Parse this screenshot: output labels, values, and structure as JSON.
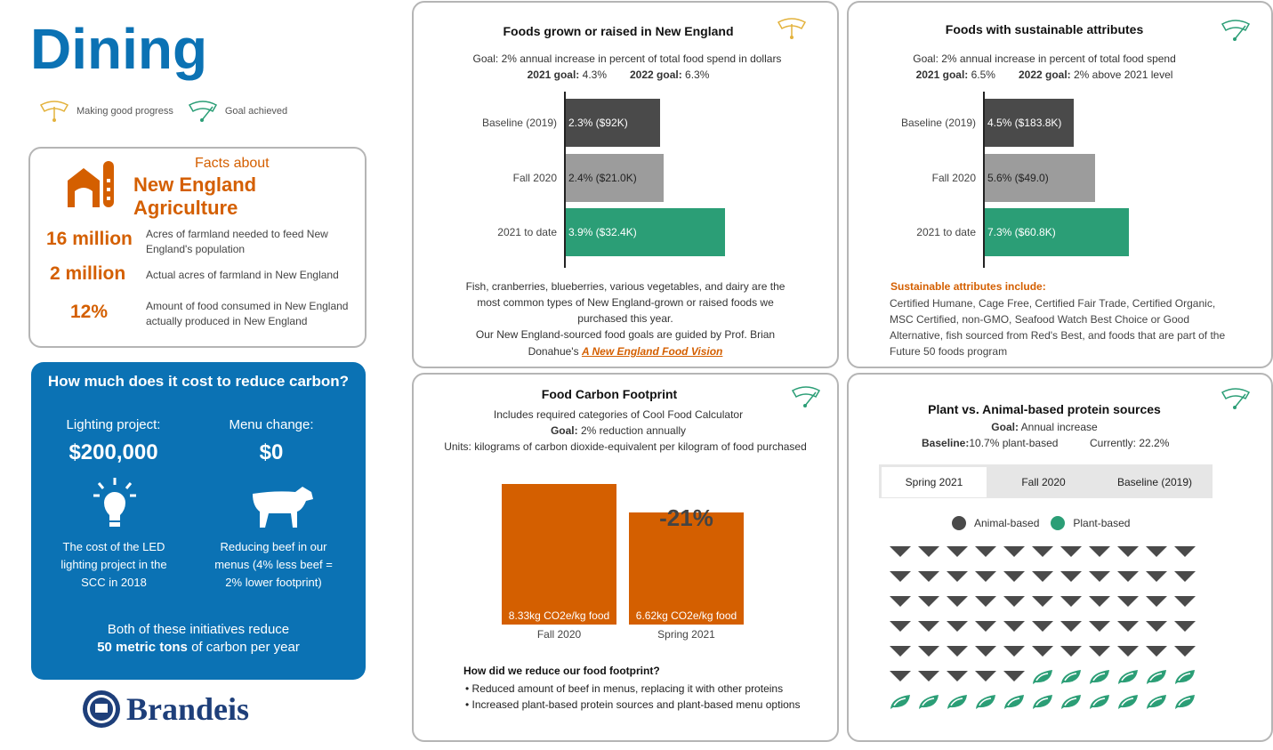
{
  "header": {
    "title": "Dining"
  },
  "legend": {
    "progress": "Making good progress",
    "achieved": "Goal achieved"
  },
  "colors": {
    "blue": "#0b72b4",
    "orange": "#d45f00",
    "green": "#2b9e76",
    "dark": "#4a4a4a",
    "gray": "#9c9c9c",
    "gold": "#e3b23c"
  },
  "facts": {
    "heading1": "Facts about",
    "heading2": "New England",
    "heading3": "Agriculture",
    "icon": "barn-silo-icon",
    "items": [
      {
        "value": "16 million",
        "text": "Acres of farmland needed to feed New England's population"
      },
      {
        "value": "2 million",
        "text": "Actual acres of farmland in New England"
      },
      {
        "value": "12%",
        "text": "Amount of food consumed in New England actually produced in New England"
      }
    ]
  },
  "carbon": {
    "title": "How much does it cost to reduce carbon?",
    "left": {
      "label": "Lighting project:",
      "value": "$200,000",
      "icon": "lightbulb-icon",
      "desc": "The cost of the LED lighting project in the  SCC  in 2018"
    },
    "right": {
      "label": "Menu change:",
      "value": "$0",
      "icon": "cow-icon",
      "desc": "Reducing beef in our menus (4% less beef = 2% lower footprint)"
    },
    "footer1": "Both of these initiatives reduce",
    "footer2_bold": "50 metric tons",
    "footer2_rest": " of carbon per year"
  },
  "logo": {
    "text": "Brandeis"
  },
  "ne_foods": {
    "title": "Foods grown or raised in New England",
    "status": "Making good progress",
    "goal": "Goal: 2% annual increase in percent of total food spend in dollars",
    "goal2021_label": "2021 goal:",
    "goal2021": " 4.3%",
    "goal2022_label": "2022 goal:",
    "goal2022": " 6.3%",
    "chart_data": {
      "type": "bar",
      "orientation": "horizontal",
      "categories": [
        "Baseline (2019)",
        "Fall 2020",
        "2021 to date"
      ],
      "values": [
        2.3,
        2.4,
        3.9
      ],
      "labels": [
        "2.3%  ($92K)",
        "2.4%  ($21.0K)",
        "3.9%  ($32.4K)"
      ],
      "colors": [
        "#4a4a4a",
        "#9c9c9c",
        "#2b9e76"
      ],
      "xlim": [
        0,
        5
      ]
    },
    "note": "Fish, cranberries, blueberries, various vegetables, and dairy are the most common types of New England-grown or raised foods we purchased this year.",
    "note2": "Our New England-sourced food goals are guided by Prof. Brian Donahue's ",
    "link": "A New England Food Vision"
  },
  "sustain": {
    "title": "Foods with sustainable attributes",
    "status": "Goal achieved",
    "goal": "Goal: 2% annual increase in percent of total food spend",
    "goal2021_label": "2021 goal:",
    "goal2021": " 6.5%",
    "goal2022_label": "2022 goal:",
    "goal2022": " 2% above 2021 level",
    "chart_data": {
      "type": "bar",
      "orientation": "horizontal",
      "categories": [
        "Baseline (2019)",
        "Fall 2020",
        "2021 to date"
      ],
      "values": [
        4.5,
        5.6,
        7.3
      ],
      "labels": [
        "4.5%  ($183.8K)",
        "5.6%  ($49.0)",
        "7.3%  ($60.8K)"
      ],
      "colors": [
        "#4a4a4a",
        "#9c9c9c",
        "#2b9e76"
      ],
      "xlim": [
        0,
        9.5
      ]
    },
    "attr_heading": "Sustainable attributes include:",
    "attr_text": "Certified Humane, Cage Free, Certified Fair Trade, Certified Organic, MSC Certified, non-GMO, Seafood Watch Best Choice or Good Alternative, fish sourced from Red's Best, and foods that are part of the Future 50 foods program"
  },
  "footprint": {
    "title": "Food Carbon Footprint",
    "status": "Goal achieved",
    "line1": "Includes required categories of Cool Food Calculator",
    "goal_label": "Goal:",
    "goal": " 2% reduction annually",
    "units": "Units: kilograms of carbon dioxide-equivalent per kilogram of food purchased",
    "chart_data": {
      "type": "bar",
      "categories": [
        "Fall 2020",
        "Spring 2021"
      ],
      "values": [
        8.33,
        6.62
      ],
      "labels": [
        "8.33kg CO2e/kg food",
        "6.62kg CO2e/kg food"
      ],
      "annotation": "-21%",
      "color": "#d45f00",
      "ylim": [
        0,
        8.7
      ]
    },
    "how_heading": "How did we reduce our food footprint?",
    "bullets": [
      "Reduced amount of beef in menus, replacing it with other proteins",
      "Increased plant-based protein sources and plant-based menu options"
    ]
  },
  "protein": {
    "title": "Plant vs. Animal-based protein sources",
    "status": "Goal achieved",
    "goal_label": "Goal:",
    "goal": " Annual increase",
    "baseline_label": "Baseline:",
    "baseline": "10.7% plant-based",
    "currently": "Currently: 22.2%",
    "tabs": [
      "Spring 2021",
      "Fall 2020",
      "Baseline (2019)"
    ],
    "active_tab": "Spring 2021",
    "legend": [
      "Animal-based",
      "Plant-based"
    ],
    "chart_data": {
      "type": "pictogram",
      "categories": [
        "Animal-based",
        "Plant-based"
      ],
      "counts": [
        60,
        17
      ],
      "columns": 11,
      "colors": [
        "#4a4a4a",
        "#2b9e76"
      ]
    }
  }
}
